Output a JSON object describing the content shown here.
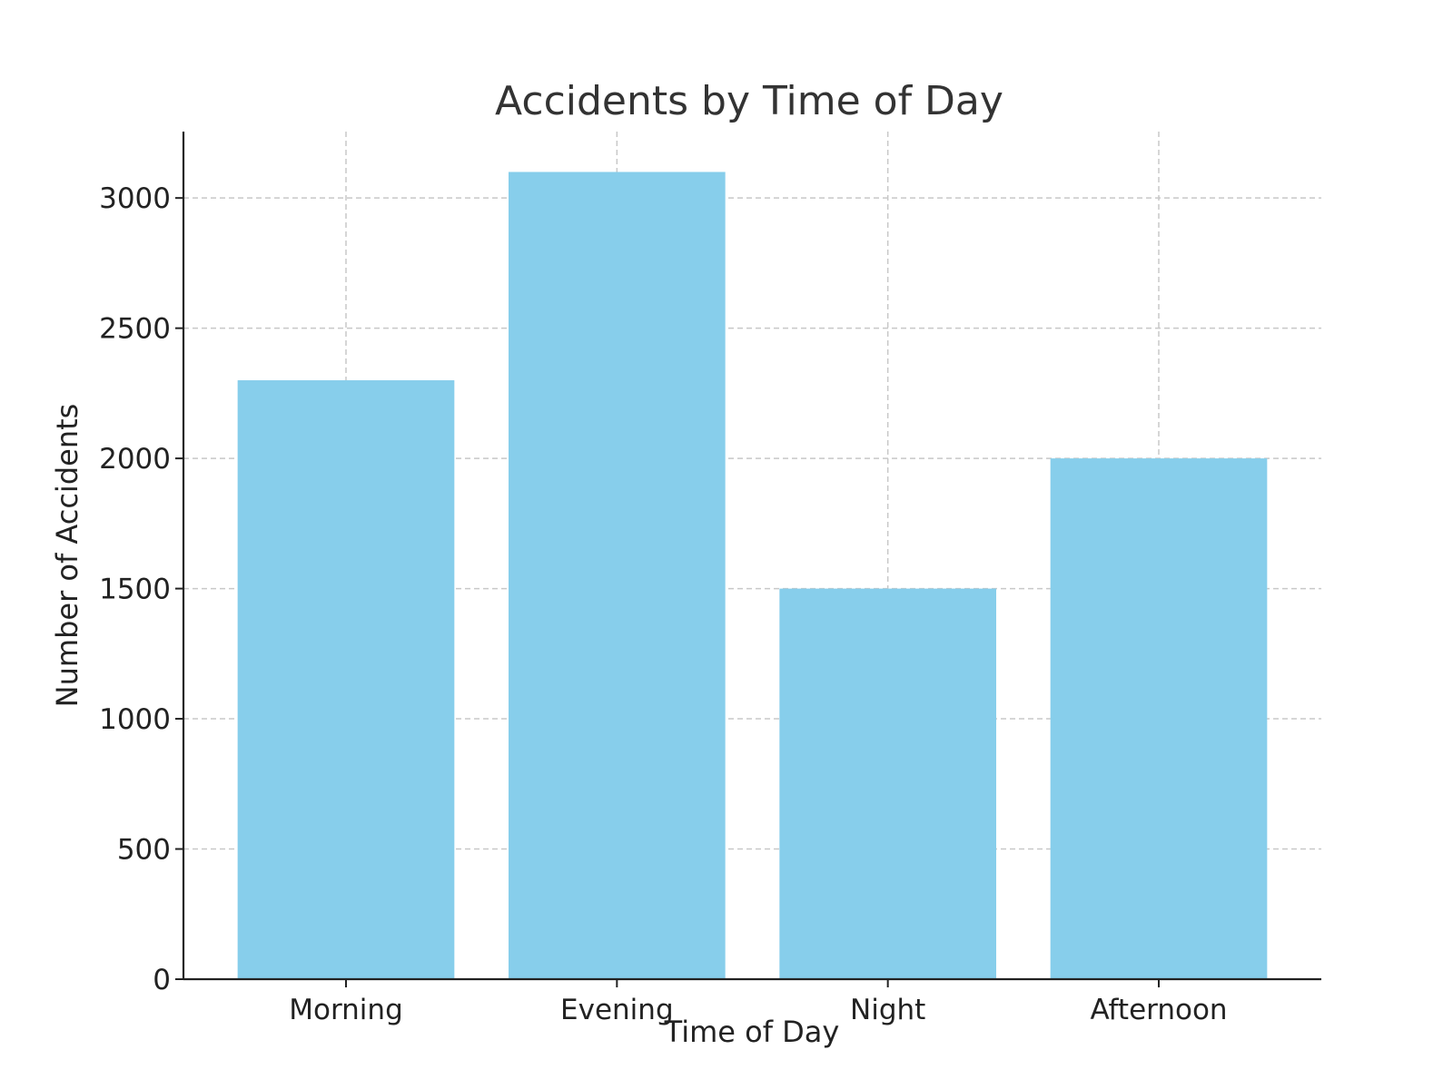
{
  "chart_data": {
    "type": "bar",
    "title": "Accidents by Time of Day",
    "xlabel": "Time of Day",
    "ylabel": "Number of Accidents",
    "categories": [
      "Morning",
      "Evening",
      "Night",
      "Afternoon"
    ],
    "values": [
      2300,
      3100,
      1500,
      2000
    ],
    "ylim": [
      0,
      3255
    ],
    "yticks": [
      0,
      500,
      1000,
      1500,
      2000,
      2500,
      3000
    ],
    "grid": true,
    "bar_color": "#87CEEB",
    "axis_color": "#222222",
    "grid_color": "#c8c8c8",
    "title_color": "#333333"
  }
}
